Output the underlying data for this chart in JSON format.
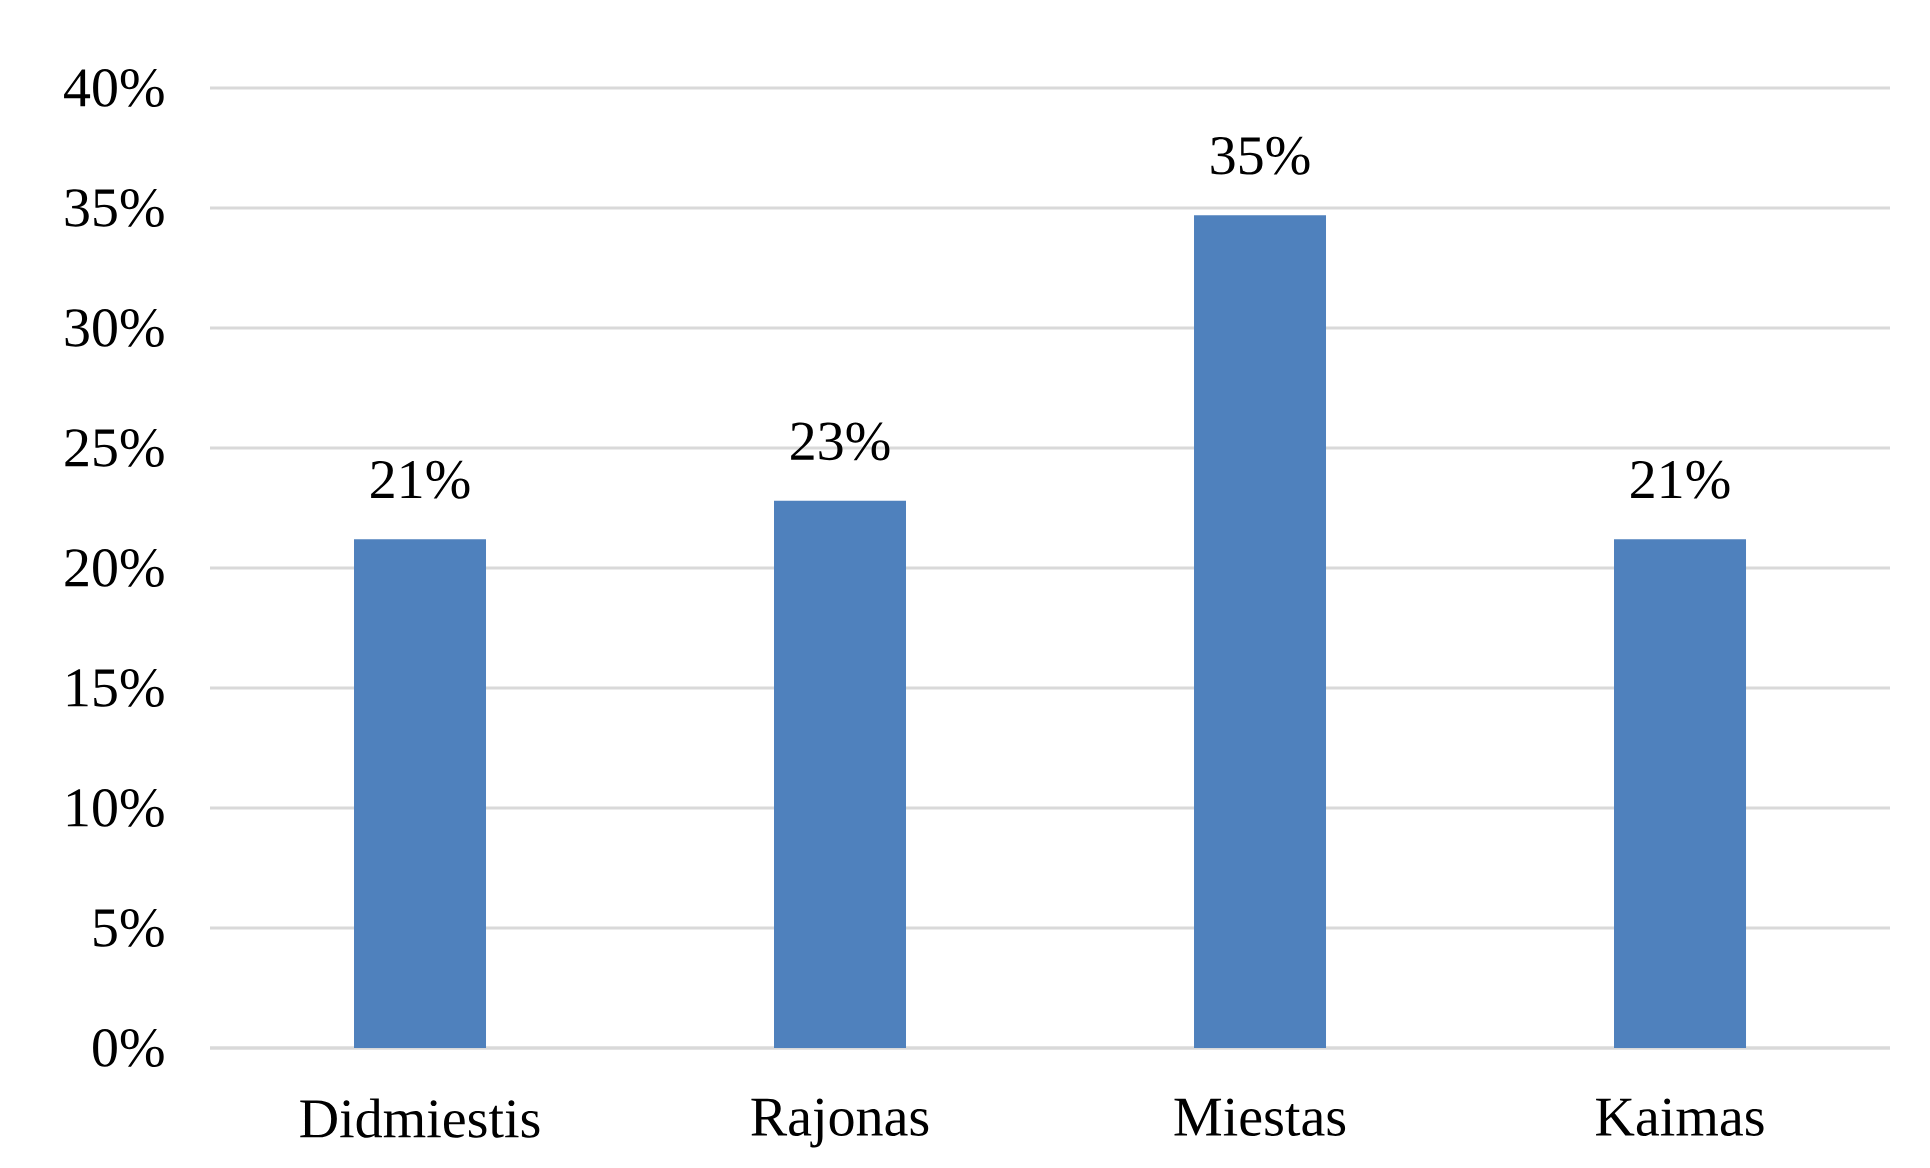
{
  "chart_data": {
    "type": "bar",
    "categories": [
      "Didmiestis",
      "Rajonas",
      "Miestas",
      "Kaimas"
    ],
    "values": [
      21.2,
      22.8,
      34.7,
      21.2
    ],
    "value_labels": [
      "21%",
      "23%",
      "35%",
      "21%"
    ],
    "color": "#4f81bd",
    "ylim": [
      0,
      40
    ],
    "yticks": [
      {
        "value": 0,
        "label": "0%"
      },
      {
        "value": 5,
        "label": "5%"
      },
      {
        "value": 10,
        "label": "10%"
      },
      {
        "value": 15,
        "label": "15%"
      },
      {
        "value": 20,
        "label": "20%"
      },
      {
        "value": 25,
        "label": "25%"
      },
      {
        "value": 30,
        "label": "30%"
      },
      {
        "value": 35,
        "label": "35%"
      },
      {
        "value": 40,
        "label": "40%"
      }
    ],
    "grid": "y"
  }
}
